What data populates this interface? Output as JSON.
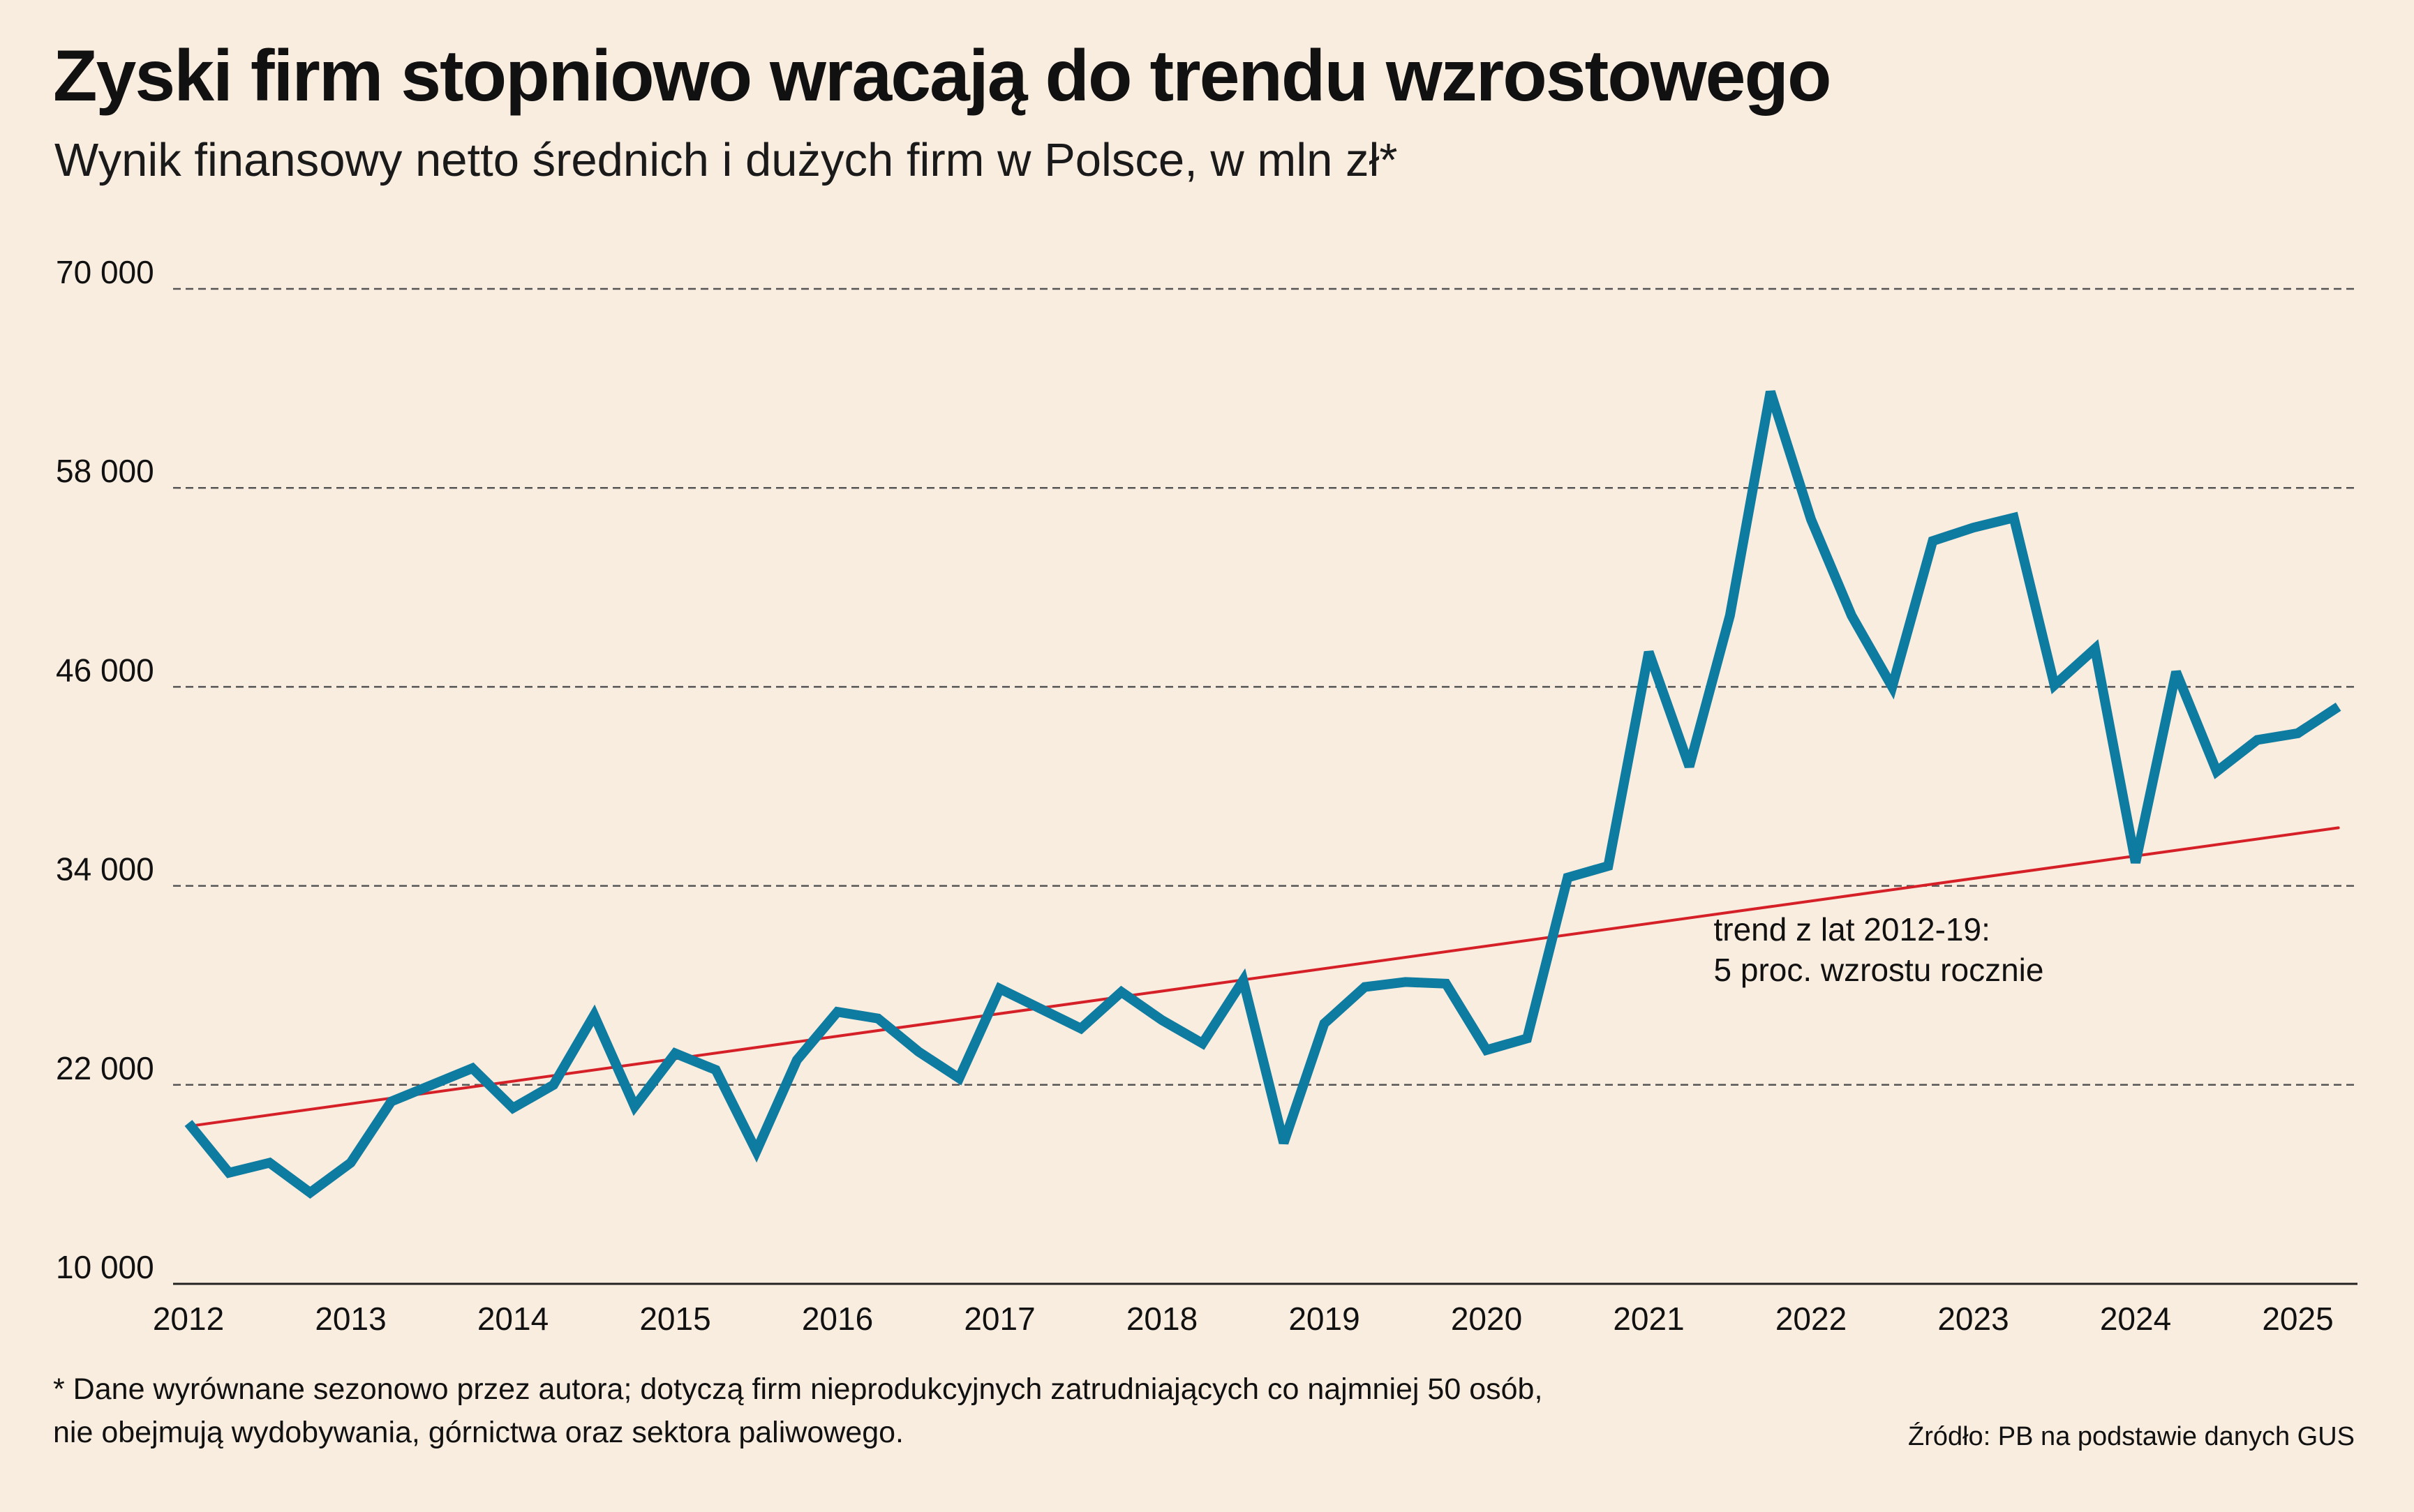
{
  "title": "Zyski firm stopniowo wracają do trendu wzrostowego",
  "subtitle": "Wynik finansowy netto średnich i dużych firm w Polsce, w mln zł*",
  "footnote": {
    "line1": "* Dane wyrównane sezonowo przez autora; dotyczą firm nieprodukcyjnych zatrudniających co najmniej 50 osób,",
    "line2": "nie obejmują wydobywania, górnictwa oraz sektora paliwowego."
  },
  "source": "Źródło: PB na podstawie danych GUS",
  "colors": {
    "background": "#f9ede0",
    "series": "#0e7ba0",
    "trend": "#d62027",
    "grid": "#555555",
    "axis": "#222222"
  },
  "chart_data": {
    "type": "line",
    "ylim": [
      10000,
      70000
    ],
    "xlim": [
      2012,
      2025.5
    ],
    "grid": "horizontal-dashed",
    "y_ticks": [
      10000,
      22000,
      34000,
      46000,
      58000,
      70000
    ],
    "y_tick_labels": [
      "10 000",
      "22 000",
      "34 000",
      "46 000",
      "58 000",
      "70 000"
    ],
    "x_ticks": [
      2012,
      2013,
      2014,
      2015,
      2016,
      2017,
      2018,
      2019,
      2020,
      2021,
      2022,
      2023,
      2024,
      2025
    ],
    "x_tick_labels": [
      "2012",
      "2013",
      "2014",
      "2015",
      "2016",
      "2017",
      "2018",
      "2019",
      "2020",
      "2021",
      "2022",
      "2023",
      "2024",
      "2025"
    ],
    "series": [
      {
        "color": "#0e7ba0",
        "x": [
          2012.0,
          2012.25,
          2012.5,
          2012.75,
          2013.0,
          2013.25,
          2013.5,
          2013.75,
          2014.0,
          2014.25,
          2014.5,
          2014.75,
          2015.0,
          2015.25,
          2015.5,
          2015.75,
          2016.0,
          2016.25,
          2016.5,
          2016.75,
          2017.0,
          2017.25,
          2017.5,
          2017.75,
          2018.0,
          2018.25,
          2018.5,
          2018.75,
          2019.0,
          2019.25,
          2019.5,
          2019.75,
          2020.0,
          2020.25,
          2020.5,
          2020.75,
          2021.0,
          2021.25,
          2021.5,
          2021.75,
          2022.0,
          2022.25,
          2022.5,
          2022.75,
          2023.0,
          2023.25,
          2023.5,
          2023.75,
          2024.0,
          2024.25,
          2024.5,
          2024.75,
          2025.0,
          2025.25
        ],
        "values": [
          19700,
          16700,
          17300,
          15500,
          17300,
          21000,
          22000,
          23000,
          20600,
          22000,
          26200,
          20700,
          23900,
          22900,
          18000,
          23500,
          26400,
          26000,
          24000,
          22400,
          27800,
          26600,
          25400,
          27600,
          25900,
          24500,
          28300,
          18500,
          25700,
          27900,
          28200,
          28100,
          24100,
          24800,
          34500,
          35200,
          48100,
          41200,
          50300,
          63800,
          56100,
          50300,
          46000,
          54800,
          55600,
          56200,
          46100,
          48300,
          35400,
          46900,
          40900,
          42800,
          43200,
          44800
        ]
      },
      {
        "name": "trend z lat 2012-19:",
        "color": "#d62027",
        "x": [
          2012.0,
          2025.25
        ],
        "values": [
          19500,
          37500
        ]
      }
    ],
    "annotations": [
      {
        "line1": "trend z lat 2012-19:",
        "line2": "5 proc. wzrostu rocznie",
        "x": 2021.4,
        "y": 30700
      }
    ]
  }
}
